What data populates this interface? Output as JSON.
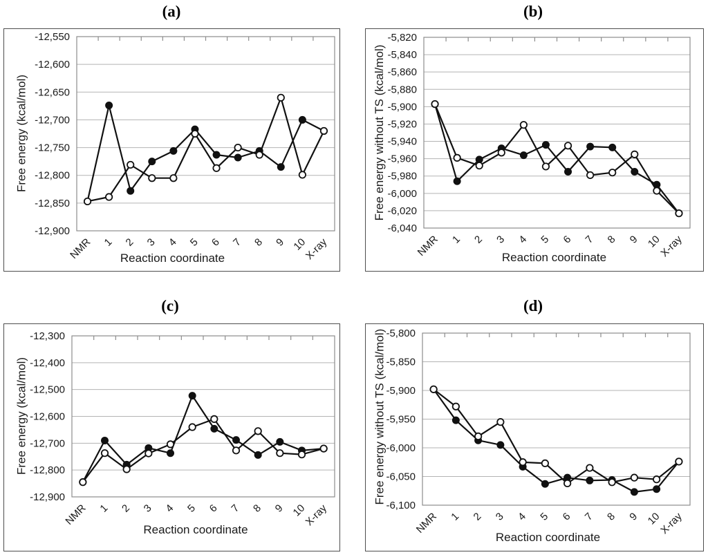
{
  "style": {
    "background": "#ffffff",
    "ink": "#111111",
    "gridline_color": "#b3b3b3",
    "plot_border_color": "#8c8c8c",
    "panel_border_color": "#4d4d4d",
    "tick_color": "#8c8c8c"
  },
  "chart_data": [
    {
      "type": "line",
      "title": "(a)",
      "xlabel": "Reaction coordinate",
      "ylabel": "Free energy (kcal/mol)",
      "categories": [
        "NMR",
        "1",
        "2",
        "3",
        "4",
        "5",
        "6",
        "7",
        "8",
        "9",
        "10",
        "X-ray"
      ],
      "ylim": [
        -12900,
        -12550
      ],
      "ytick_step": 50,
      "grid": true,
      "legend": "none",
      "series": [
        {
          "name": "filled circles",
          "marker": "filled-circle",
          "color": "#111111",
          "values": [
            -12847,
            -12674,
            -12828,
            -12775,
            -12756,
            -12717,
            -12763,
            -12768,
            -12756,
            -12785,
            -12700,
            -12720
          ]
        },
        {
          "name": "open circles",
          "marker": "open-circle",
          "color": "#111111",
          "values": [
            -12847,
            -12839,
            -12781,
            -12805,
            -12805,
            -12725,
            -12787,
            -12750,
            -12763,
            -12660,
            -12799,
            -12720
          ]
        }
      ]
    },
    {
      "type": "line",
      "title": "(b)",
      "xlabel": "Reaction coordinate",
      "ylabel": "Free energy without TS (kcal/mol)",
      "categories": [
        "NMR",
        "1",
        "2",
        "3",
        "4",
        "5",
        "6",
        "7",
        "8",
        "9",
        "10",
        "X-ray"
      ],
      "ylim": [
        -6040,
        -5820
      ],
      "ytick_step": 20,
      "grid": true,
      "legend": "none",
      "series": [
        {
          "name": "filled circles",
          "marker": "filled-circle",
          "color": "#111111",
          "values": [
            -5897,
            -5986,
            -5961,
            -5948,
            -5956,
            -5944,
            -5975,
            -5946,
            -5947,
            -5975,
            -5990,
            -6023
          ]
        },
        {
          "name": "open circles",
          "marker": "open-circle",
          "color": "#111111",
          "values": [
            -5897,
            -5959,
            -5968,
            -5953,
            -5921,
            -5969,
            -5945,
            -5979,
            -5976,
            -5955,
            -5997,
            -6023
          ]
        }
      ]
    },
    {
      "type": "line",
      "title": "(c)",
      "xlabel": "Reaction coordinate",
      "ylabel": "Free energy (kcal/mol)",
      "categories": [
        "NMR",
        "1",
        "2",
        "3",
        "4",
        "5",
        "6",
        "7",
        "8",
        "9",
        "10",
        "X-ray"
      ],
      "ylim": [
        -12900,
        -12300
      ],
      "ytick_step": 100,
      "grid": true,
      "legend": "none",
      "series": [
        {
          "name": "filled circles",
          "marker": "filled-circle",
          "color": "#111111",
          "values": [
            -12845,
            -12690,
            -12780,
            -12718,
            -12737,
            -12523,
            -12646,
            -12688,
            -12744,
            -12695,
            -12727,
            -12720
          ]
        },
        {
          "name": "open circles",
          "marker": "open-circle",
          "color": "#111111",
          "values": [
            -12845,
            -12737,
            -12797,
            -12738,
            -12704,
            -12640,
            -12610,
            -12727,
            -12655,
            -12737,
            -12742,
            -12720
          ]
        }
      ]
    },
    {
      "type": "line",
      "title": "(d)",
      "xlabel": "Reaction coordinate",
      "ylabel": "Free energy without TS (kcal/mol)",
      "categories": [
        "NMR",
        "1",
        "2",
        "3",
        "4",
        "5",
        "6",
        "7",
        "8",
        "9",
        "10",
        "X-ray"
      ],
      "ylim": [
        -6100,
        -5800
      ],
      "ytick_step": 50,
      "grid": true,
      "legend": "none",
      "series": [
        {
          "name": "filled circles",
          "marker": "filled-circle",
          "color": "#111111",
          "values": [
            -5898,
            -5952,
            -5987,
            -5995,
            -6033,
            -6063,
            -6052,
            -6057,
            -6056,
            -6077,
            -6072,
            -6024
          ]
        },
        {
          "name": "open circles",
          "marker": "open-circle",
          "color": "#111111",
          "values": [
            -5898,
            -5928,
            -5980,
            -5955,
            -6025,
            -6027,
            -6062,
            -6035,
            -6060,
            -6052,
            -6055,
            -6024
          ]
        }
      ]
    }
  ]
}
